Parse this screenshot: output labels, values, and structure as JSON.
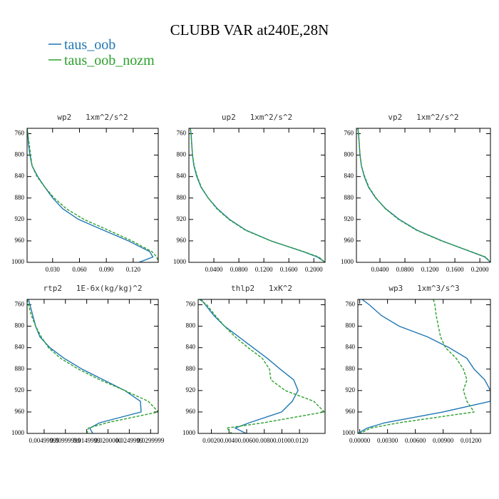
{
  "title": "CLUBB VAR at240E,28N",
  "legend": [
    {
      "name": "taus_oob",
      "color": "#1f77b4"
    },
    {
      "name": "taus_oob_nozm",
      "color": "#2ca02c"
    }
  ],
  "chart_data": [
    {
      "type": "line",
      "title": "wp2   1xm^2/s^2",
      "y": [
        750,
        760,
        780,
        800,
        820,
        840,
        860,
        880,
        900,
        920,
        940,
        960,
        980,
        990,
        1000
      ],
      "ylim": [
        750,
        1000
      ],
      "yticks": [
        760,
        800,
        840,
        880,
        920,
        960,
        1000
      ],
      "y_inverted": true,
      "xlim": [
        0.0015,
        0.148
      ],
      "xticks": [
        {
          "value": 0.03,
          "label": "0.030"
        },
        {
          "value": 0.06,
          "label": "0.060"
        },
        {
          "value": 0.09,
          "label": "0.090"
        },
        {
          "value": 0.12,
          "label": "0.120"
        }
      ],
      "series": [
        {
          "color": "#1f77b4",
          "linestyle": "solid",
          "values": [
            0.0015,
            0.0023,
            0.0031,
            0.0047,
            0.0071,
            0.0134,
            0.0214,
            0.0302,
            0.0413,
            0.059,
            0.0867,
            0.1146,
            0.1385,
            0.142,
            0.1265
          ]
        },
        {
          "color": "#2ca02c",
          "linestyle": "dashed",
          "values": [
            0.0015,
            0.0023,
            0.0039,
            0.0055,
            0.0071,
            0.0126,
            0.0214,
            0.0318,
            0.0453,
            0.065,
            0.0923,
            0.1185,
            0.141,
            0.1464,
            0.148
          ]
        }
      ]
    },
    {
      "type": "line",
      "title": "up2   1xm^2/s^2",
      "y": [
        750,
        760,
        780,
        800,
        820,
        840,
        860,
        880,
        900,
        920,
        940,
        960,
        980,
        990,
        1000
      ],
      "ylim": [
        750,
        1000
      ],
      "yticks": [
        760,
        800,
        840,
        880,
        920,
        960,
        1000
      ],
      "y_inverted": true,
      "xlim": [
        0.0,
        0.218
      ],
      "xticks": [
        {
          "value": 0.04,
          "label": "0.0400"
        },
        {
          "value": 0.08,
          "label": "0.0800"
        },
        {
          "value": 0.12,
          "label": "0.1200"
        },
        {
          "value": 0.16,
          "label": "0.1600"
        },
        {
          "value": 0.2,
          "label": "0.2000"
        }
      ],
      "series": [
        {
          "color": "#1f77b4",
          "linestyle": "solid",
          "values": [
            0.0023,
            0.0034,
            0.0046,
            0.0057,
            0.008,
            0.0126,
            0.0194,
            0.0309,
            0.0457,
            0.0651,
            0.0914,
            0.1314,
            0.1829,
            0.2057,
            0.2183
          ]
        },
        {
          "color": "#2ca02c",
          "linestyle": "dashed",
          "values": [
            0.0023,
            0.0034,
            0.0046,
            0.0057,
            0.0085,
            0.0133,
            0.02,
            0.0309,
            0.0446,
            0.064,
            0.0903,
            0.131,
            0.184,
            0.208,
            0.218
          ]
        }
      ]
    },
    {
      "type": "line",
      "title": "vp2   1xm^2/s^2",
      "y": [
        750,
        760,
        780,
        800,
        820,
        840,
        860,
        880,
        900,
        920,
        940,
        960,
        980,
        990,
        1000
      ],
      "ylim": [
        750,
        1000
      ],
      "yticks": [
        760,
        800,
        840,
        880,
        920,
        960,
        1000
      ],
      "y_inverted": true,
      "xlim": [
        0.0023,
        0.217
      ],
      "xticks": [
        {
          "value": 0.04,
          "label": "0.0400"
        },
        {
          "value": 0.08,
          "label": "0.0800"
        },
        {
          "value": 0.12,
          "label": "0.1200"
        },
        {
          "value": 0.16,
          "label": "0.1600"
        },
        {
          "value": 0.2,
          "label": "0.2000"
        }
      ],
      "series": [
        {
          "color": "#1f77b4",
          "linestyle": "solid",
          "values": [
            0.0046,
            0.0057,
            0.0069,
            0.008,
            0.0103,
            0.0149,
            0.0217,
            0.0332,
            0.0492,
            0.0709,
            0.0994,
            0.1394,
            0.1851,
            0.208,
            0.2172
          ]
        },
        {
          "color": "#2ca02c",
          "linestyle": "dashed",
          "values": [
            0.0046,
            0.0057,
            0.0069,
            0.008,
            0.0103,
            0.0155,
            0.0224,
            0.0338,
            0.0486,
            0.0698,
            0.0983,
            0.1385,
            0.1863,
            0.2092,
            0.217
          ]
        }
      ]
    },
    {
      "type": "line",
      "title": "rtp2   1E-6x(kg/kg)^2",
      "y": [
        750,
        760,
        780,
        800,
        820,
        840,
        860,
        880,
        900,
        920,
        940,
        960,
        980,
        990,
        1000
      ],
      "ylim": [
        750,
        1000
      ],
      "yticks": [
        760,
        800,
        840,
        880,
        920,
        960,
        1000
      ],
      "y_inverted": true,
      "xlim": [
        0.001,
        0.0318
      ],
      "xticks": [
        {
          "value": 0.005,
          "label": "0.00499999"
        },
        {
          "value": 0.01,
          "label": "0.00999999"
        },
        {
          "value": 0.015,
          "label": "0.0149999"
        },
        {
          "value": 0.02,
          "label": "0.0200000"
        },
        {
          "value": 0.025,
          "label": "0.0249999"
        },
        {
          "value": 0.03,
          "label": "0.0299999"
        }
      ],
      "series": [
        {
          "color": "#1f77b4",
          "linestyle": "solid",
          "values": [
            0.00133,
            0.00167,
            0.00234,
            0.00301,
            0.00401,
            0.00636,
            0.0097,
            0.01389,
            0.01891,
            0.02393,
            0.02762,
            0.02779,
            0.01807,
            0.01573,
            0.0164
          ]
        },
        {
          "color": "#2ca02c",
          "linestyle": "dashed",
          "values": [
            0.001,
            0.00133,
            0.002,
            0.00301,
            0.00435,
            0.00602,
            0.00887,
            0.01305,
            0.01807,
            0.02393,
            0.02946,
            0.0318,
            0.01975,
            0.0154,
            0.01506
          ]
        }
      ]
    },
    {
      "type": "line",
      "title": "thlp2   1xK^2",
      "y": [
        750,
        760,
        780,
        800,
        820,
        840,
        860,
        880,
        900,
        920,
        940,
        960,
        980,
        990,
        1000
      ],
      "ylim": [
        750,
        1000
      ],
      "yticks": [
        760,
        800,
        840,
        880,
        920,
        960,
        1000
      ],
      "y_inverted": true,
      "xlim": [
        0.0005,
        0.0149
      ],
      "xticks": [
        {
          "value": 0.002,
          "label": "0.0020"
        },
        {
          "value": 0.004,
          "label": "0.0040"
        },
        {
          "value": 0.006,
          "label": "0.0060"
        },
        {
          "value": 0.008,
          "label": "0.0080"
        },
        {
          "value": 0.01,
          "label": "0.0100"
        },
        {
          "value": 0.012,
          "label": "0.0120"
        }
      ],
      "series": [
        {
          "color": "#1f77b4",
          "linestyle": "solid",
          "values": [
            0.00082,
            0.00131,
            0.00228,
            0.00349,
            0.00511,
            0.00673,
            0.00835,
            0.0098,
            0.01134,
            0.01183,
            0.01118,
            0.00997,
            0.00632,
            0.00471,
            0.00592
          ]
        },
        {
          "color": "#2ca02c",
          "linestyle": "dashed",
          "values": [
            0.00066,
            0.00147,
            0.00244,
            0.00349,
            0.00471,
            0.00616,
            0.00778,
            0.00859,
            0.00875,
            0.01037,
            0.01361,
            0.01482,
            0.00794,
            0.00374,
            0.0043
          ]
        }
      ]
    },
    {
      "type": "line",
      "title": "wp3   1xm^3/s^3",
      "y": [
        750,
        760,
        780,
        800,
        820,
        840,
        860,
        880,
        900,
        920,
        940,
        960,
        980,
        990,
        1000
      ],
      "ylim": [
        750,
        1000
      ],
      "yticks": [
        760,
        800,
        840,
        880,
        920,
        960,
        1000
      ],
      "y_inverted": true,
      "xlim": [
        -0.0002,
        0.0141
      ],
      "xticks": [
        {
          "value": 0.0,
          "label": "0.00000"
        },
        {
          "value": 0.003,
          "label": "0.00300"
        },
        {
          "value": 0.006,
          "label": "0.00600"
        },
        {
          "value": 0.009,
          "label": "0.00900"
        },
        {
          "value": 0.012,
          "label": "0.01200"
        }
      ],
      "series": [
        {
          "color": "#1f77b4",
          "linestyle": "solid",
          "values": [
            0.00026,
            0.00103,
            0.00234,
            0.00426,
            0.00733,
            0.00964,
            0.01156,
            0.01233,
            0.01348,
            0.0141,
            0.0141,
            0.00899,
            0.00272,
            0.0008,
            -0.0002
          ]
        },
        {
          "color": "#2ca02c",
          "linestyle": "dashed",
          "values": [
            0.00795,
            0.0081,
            0.00825,
            0.00848,
            0.00872,
            0.00926,
            0.01041,
            0.01118,
            0.01156,
            0.01118,
            0.01156,
            0.01233,
            0.00426,
            0.00118,
            3e-05
          ]
        }
      ]
    }
  ]
}
